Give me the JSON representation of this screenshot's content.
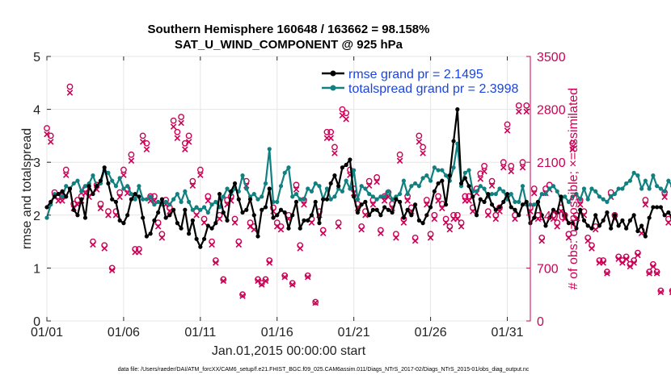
{
  "chart_data": {
    "type": "line",
    "title": "Southern Hemisphere 160648 / 163662 = 98.158%",
    "subtitle": "SAT_U_WIND_COMPONENT @ 925 hPa",
    "xlabel": "Jan.01,2015 00:00:00 start",
    "ylabel": "rmse and totalspread",
    "y2label": "# of obs: o=possible; ×=assimilated",
    "footer": "data file: /Users/raeder/DAI/ATM_forcXX/CAM6_setup/f.e21.FHIST_BGC.f09_025.CAM6assim.011/Diags_NTrS_2017-02/Diags_NTrS_2015-01/obs_diag_output.nc",
    "xlim": [
      0,
      31.5
    ],
    "ylim": [
      0,
      5
    ],
    "y2lim": [
      0,
      3500
    ],
    "xticks": [
      0,
      5,
      10,
      15,
      20,
      25,
      30
    ],
    "xticklabels": [
      "01/01",
      "01/06",
      "01/11",
      "01/16",
      "01/21",
      "01/26",
      "01/31"
    ],
    "yticks": [
      0,
      1,
      2,
      3,
      4,
      5
    ],
    "y2ticks": [
      0,
      700,
      1400,
      2100,
      2800,
      3500
    ],
    "x_step_days": 0.25,
    "x_start_day": 0,
    "series": [
      {
        "name": "rmse grand pr = 2.1495",
        "color": "#000000",
        "axis": "left",
        "values": [
          2.15,
          2.25,
          2.35,
          2.4,
          2.45,
          2.35,
          2.5,
          2.1,
          2.0,
          2.3,
          1.95,
          2.55,
          2.4,
          2.55,
          2.65,
          2.9,
          2.6,
          2.3,
          2.25,
          1.9,
          1.85,
          2.0,
          2.3,
          2.4,
          2.35,
          1.95,
          1.6,
          1.65,
          1.9,
          2.05,
          2.3,
          1.95,
          2.0,
          2.1,
          1.85,
          1.75,
          2.1,
          1.65,
          1.9,
          1.55,
          1.4,
          1.55,
          1.8,
          1.75,
          1.85,
          2.4,
          2.05,
          1.9,
          2.45,
          2.6,
          2.3,
          2.05,
          2.1,
          2.3,
          2.0,
          1.6,
          2.1,
          2.15,
          2.5,
          1.95,
          2.0,
          2.1,
          2.05,
          1.75,
          2.0,
          2.25,
          1.75,
          1.9,
          1.9,
          2.0,
          2.25,
          1.85,
          2.3,
          2.3,
          2.6,
          2.75,
          2.55,
          2.9,
          2.95,
          3.05,
          2.35,
          2.05,
          2.2,
          2.25,
          2.0,
          2.1,
          2.1,
          2.0,
          2.15,
          2.1,
          2.05,
          2.3,
          2.25,
          1.95,
          2.1,
          2.0,
          2.2,
          1.9,
          1.85,
          2.0,
          2.15,
          2.45,
          2.6,
          2.65,
          2.2,
          2.75,
          3.4,
          4.0,
          2.6,
          2.7,
          2.55,
          2.35,
          2.0,
          2.3,
          2.25,
          2.4,
          2.2,
          2.1,
          2.15,
          2.25,
          2.4,
          2.15,
          2.1,
          2.0,
          2.2,
          2.25,
          1.85,
          1.95,
          2.25,
          2.0,
          1.8,
          1.95,
          2.1,
          2.05,
          2.35,
          2.0,
          1.85,
          1.85,
          1.75,
          2.1,
          1.9,
          1.8,
          1.75,
          2.0,
          1.8,
          1.9,
          2.05,
          1.75,
          2.0,
          1.8,
          1.9,
          1.75,
          1.9,
          2.0,
          1.7,
          1.8,
          1.6,
          1.95,
          2.15,
          2.15,
          2.15,
          2.0,
          2.05,
          1.95,
          2.0,
          1.9
        ]
      },
      {
        "name": "totalspread grand pr = 2.3998",
        "color": "#118080",
        "axis": "left",
        "values": [
          1.95,
          2.2,
          2.4,
          2.4,
          2.35,
          2.55,
          2.5,
          2.6,
          2.65,
          2.45,
          2.55,
          2.6,
          2.75,
          2.55,
          2.6,
          2.85,
          2.8,
          2.65,
          2.55,
          2.7,
          2.5,
          2.55,
          2.4,
          2.3,
          2.55,
          2.3,
          2.3,
          2.35,
          2.2,
          2.25,
          2.2,
          2.25,
          2.2,
          2.3,
          2.4,
          2.25,
          2.45,
          2.25,
          2.1,
          2.15,
          2.1,
          2.15,
          2.05,
          2.2,
          2.25,
          2.15,
          2.35,
          2.5,
          2.4,
          2.5,
          2.45,
          2.75,
          2.5,
          2.35,
          2.4,
          2.3,
          2.35,
          2.6,
          3.25,
          2.25,
          2.25,
          2.55,
          2.8,
          2.9,
          2.35,
          2.4,
          2.3,
          2.3,
          2.5,
          2.45,
          2.6,
          2.55,
          2.3,
          2.5,
          2.3,
          2.35,
          2.5,
          2.45,
          2.65,
          2.5,
          2.85,
          2.3,
          2.55,
          2.5,
          2.4,
          2.35,
          2.3,
          2.35,
          2.35,
          2.45,
          2.3,
          2.35,
          2.4,
          2.65,
          2.4,
          2.55,
          2.6,
          2.55,
          2.7,
          2.75,
          2.65,
          2.9,
          2.85,
          2.85,
          2.75,
          2.65,
          2.9,
          3.35,
          2.55,
          2.8,
          2.85,
          2.45,
          2.45,
          2.55,
          2.5,
          2.35,
          2.4,
          2.4,
          2.5,
          2.45,
          2.3,
          2.4,
          2.25,
          2.25,
          2.55,
          2.2,
          2.2,
          2.2,
          2.25,
          2.4,
          2.4,
          2.5,
          2.55,
          2.45,
          2.3,
          2.35,
          2.25,
          2.35,
          2.4,
          2.3,
          2.5,
          2.3,
          2.5,
          2.45,
          2.35,
          2.3,
          2.25,
          2.35,
          2.4,
          2.5,
          2.5,
          2.6,
          2.65,
          2.8,
          2.75,
          2.5,
          2.65,
          2.5,
          2.75,
          2.55,
          2.5,
          2.45,
          2.65,
          2.55,
          2.65,
          2.35,
          2.85,
          2.45,
          2.55,
          2.3,
          2.4,
          2.85
        ]
      },
      {
        "name": "possible",
        "marker": "o",
        "color": "#cc0055",
        "axis": "right",
        "values": [
          2550,
          2450,
          1700,
          1650,
          1650,
          2000,
          3100,
          1550,
          1600,
          1650,
          1750,
          1700,
          1050,
          1800,
          1550,
          1000,
          1450,
          700,
          1450,
          1700,
          2000,
          1750,
          2200,
          950,
          950,
          2450,
          2350,
          1650,
          1650,
          1300,
          1150,
          1600,
          1500,
          2650,
          2500,
          2700,
          2350,
          2450,
          1850,
          1450,
          2000,
          1350,
          1650,
          1050,
          800,
          1400,
          550,
          1600,
          1650,
          1350,
          1050,
          350,
          1850,
          1300,
          1250,
          550,
          500,
          550,
          800,
          1500,
          1300,
          1250,
          600,
          1400,
          500,
          1800,
          1000,
          1600,
          600,
          1350,
          250,
          1450,
          1200,
          2500,
          2500,
          2300,
          1300,
          2800,
          2750,
          2000,
          1750,
          1550,
          1250,
          1450,
          1850,
          1600,
          1900,
          1200,
          1650,
          1700,
          1550,
          1150,
          2200,
          1350,
          1650,
          1500,
          1100,
          2450,
          2300,
          1600,
          1150,
          1400,
          1650,
          1550,
          1350,
          1250,
          1400,
          1400,
          1300,
          1650,
          1650,
          1500,
          1750,
          1950,
          2050,
          1450,
          1850,
          1400,
          1500,
          2100,
          2600,
          2050,
          1400,
          2850,
          2100,
          2850,
          1500,
          1750,
          1400,
          1100,
          1750,
          1800,
          1400,
          1300,
          1500,
          1400,
          1150,
          2350,
          1400,
          1600,
          1450,
          1100,
          1000,
          1250,
          800,
          800,
          650,
          1700,
          1400,
          850,
          800,
          850,
          750,
          800,
          900,
          1200,
          1600,
          650,
          750,
          650,
          400,
          1700,
          1350,
          400,
          1150,
          1100,
          1700,
          2100,
          1250,
          1350
        ]
      },
      {
        "name": "assimilated",
        "marker": "x",
        "color": "#cc0055",
        "axis": "right",
        "values": [
          2470,
          2370,
          1640,
          1590,
          1590,
          1930,
          3020,
          1490,
          1540,
          1590,
          1690,
          1640,
          1010,
          1740,
          1490,
          960,
          1400,
          670,
          1400,
          1640,
          1930,
          1690,
          2120,
          910,
          910,
          2370,
          2270,
          1590,
          1590,
          1250,
          1100,
          1540,
          1450,
          2570,
          2420,
          2620,
          2270,
          2370,
          1790,
          1400,
          1930,
          1300,
          1590,
          1010,
          770,
          1350,
          530,
          1540,
          1590,
          1300,
          1010,
          330,
          1790,
          1250,
          1210,
          530,
          480,
          530,
          770,
          1450,
          1250,
          1210,
          580,
          1350,
          480,
          1740,
          960,
          1540,
          580,
          1300,
          240,
          1400,
          1160,
          2420,
          2420,
          2220,
          1250,
          2720,
          2670,
          1930,
          1690,
          1490,
          1210,
          1400,
          1790,
          1540,
          1840,
          1160,
          1590,
          1640,
          1490,
          1100,
          2120,
          1300,
          1590,
          1450,
          1060,
          2370,
          2220,
          1540,
          1100,
          1350,
          1590,
          1490,
          1300,
          1210,
          1350,
          1350,
          1250,
          1590,
          1590,
          1450,
          1690,
          1880,
          1980,
          1400,
          1790,
          1350,
          1450,
          2030,
          2520,
          1980,
          1350,
          2770,
          2030,
          2770,
          1450,
          1690,
          1350,
          1060,
          1690,
          1740,
          1350,
          1250,
          1450,
          1350,
          1100,
          2270,
          1350,
          1540,
          1400,
          1060,
          960,
          1210,
          770,
          770,
          630,
          1640,
          1350,
          820,
          770,
          820,
          720,
          770,
          870,
          1160,
          1540,
          630,
          720,
          630,
          380,
          1640,
          1300,
          380,
          1100,
          1060,
          1640,
          2030,
          1210,
          1300
        ]
      }
    ],
    "legend_position": "top-right"
  }
}
